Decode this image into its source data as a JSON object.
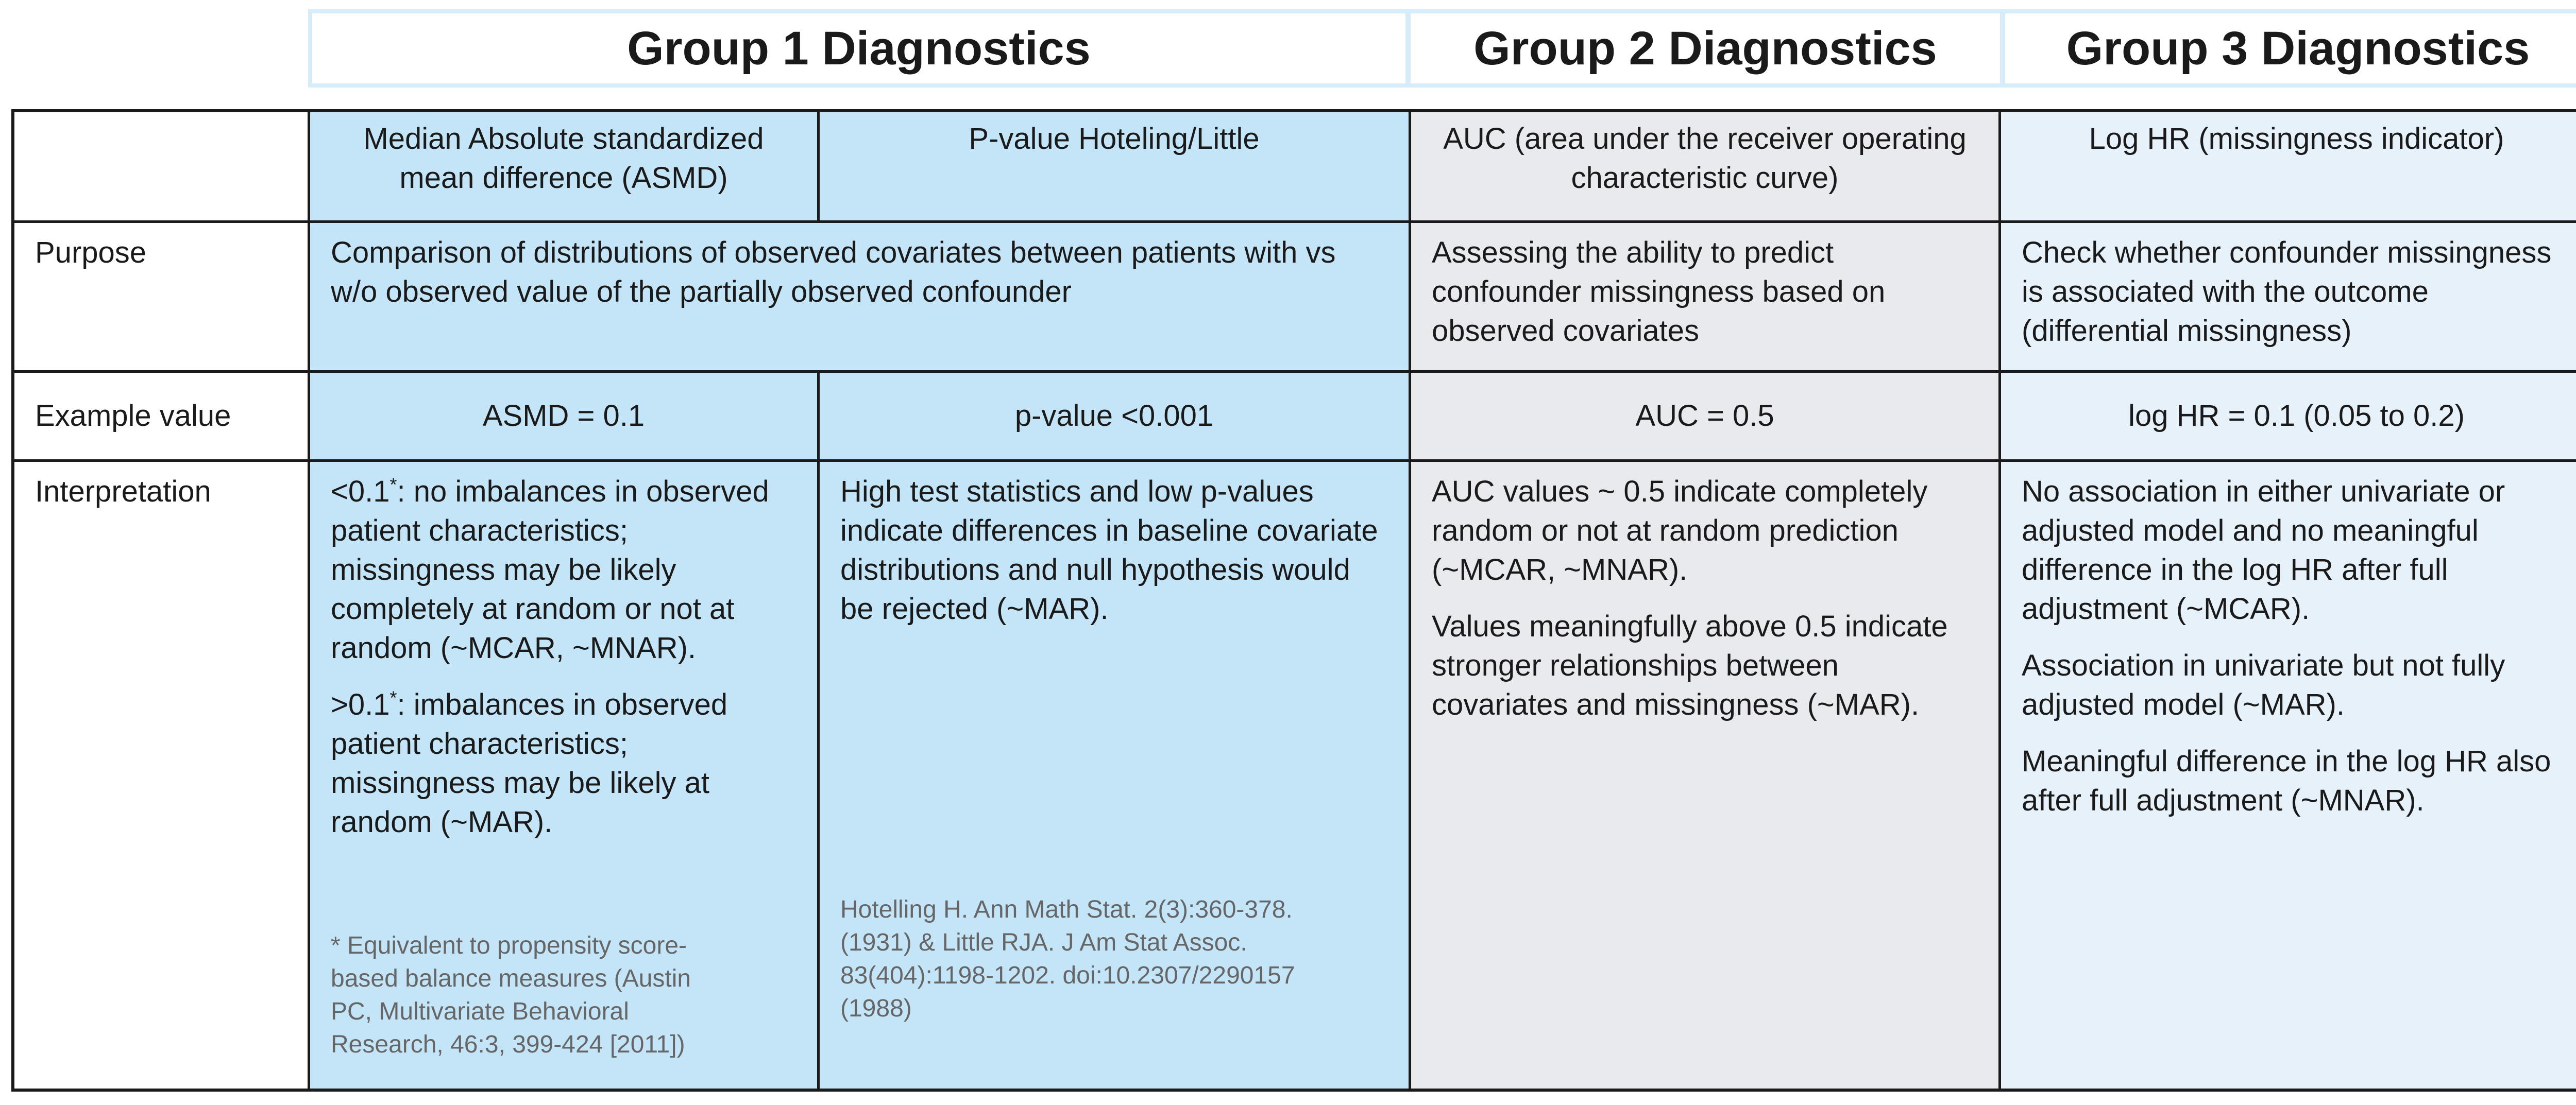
{
  "groups": {
    "g1": "Group 1 Diagnostics",
    "g2": "Group 2 Diagnostics",
    "g3": "Group 3 Diagnostics"
  },
  "colors": {
    "group1": "#c4e5f8",
    "group2": "#e9eaee",
    "group3": "#e6f1f9",
    "header_border": "#d6ecf8"
  },
  "columns": {
    "asmd": "Median Absolute standardized mean difference (ASMD)",
    "pvalue": "P-value Hoteling/Little",
    "auc": "AUC (area under the receiver operating characteristic curve)",
    "loghr": "Log HR (missingness indicator)"
  },
  "rows": {
    "purpose": {
      "label": "Purpose",
      "group1": "Comparison of distributions of observed covariates between patients with vs w/o observed value of the partially observed confounder",
      "group2": "Assessing the ability to predict confounder missingness based on observed covariates",
      "group3": "Check whether confounder missingness is associated with the outcome (differential missingness)"
    },
    "example": {
      "label": "Example value",
      "asmd": "ASMD = 0.1",
      "pvalue": "p-value <0.001",
      "auc": "AUC = 0.5",
      "loghr": "log HR = 0.1 (0.05 to 0.2)"
    },
    "interpretation": {
      "label": "Interpretation",
      "asmd": {
        "p1_lead": "<0.1",
        "p1_mark": "*",
        "p1_text": ": no imbalances in observed patient characteristics; missingness may be likely completely at random or not at random (~MCAR, ~MNAR).",
        "p2_lead": ">0.1",
        "p2_mark": "*",
        "p2_text": ": imbalances in observed patient characteristics; missingness may be likely at random (~MAR).",
        "note": "* Equivalent to propensity score-based balance measures (Austin PC, Multivariate Behavioral Research, 46:3, 399-424 [2011])"
      },
      "pvalue": {
        "text": "High test statistics and low p-values indicate differences in baseline covariate distributions and null hypothesis would be rejected (~MAR).",
        "note": "Hotelling H. Ann Math Stat. 2(3):360-378. (1931) & Little RJA. J Am Stat Assoc. 83(404):1198-1202. doi:10.2307/2290157 (1988)"
      },
      "auc": {
        "p1": "AUC values ~ 0.5 indicate completely random or not at random prediction (~MCAR, ~MNAR).",
        "p2": "Values meaningfully above 0.5 indicate stronger relationships between covariates and missingness (~MAR)."
      },
      "loghr": {
        "p1": "No association in either univariate or adjusted model and no meaningful difference in the log HR after full adjustment (~MCAR).",
        "p2": "Association in univariate but not fully adjusted model (~MAR).",
        "p3": "Meaningful difference in the log HR also after full adjustment (~MNAR)."
      }
    }
  }
}
